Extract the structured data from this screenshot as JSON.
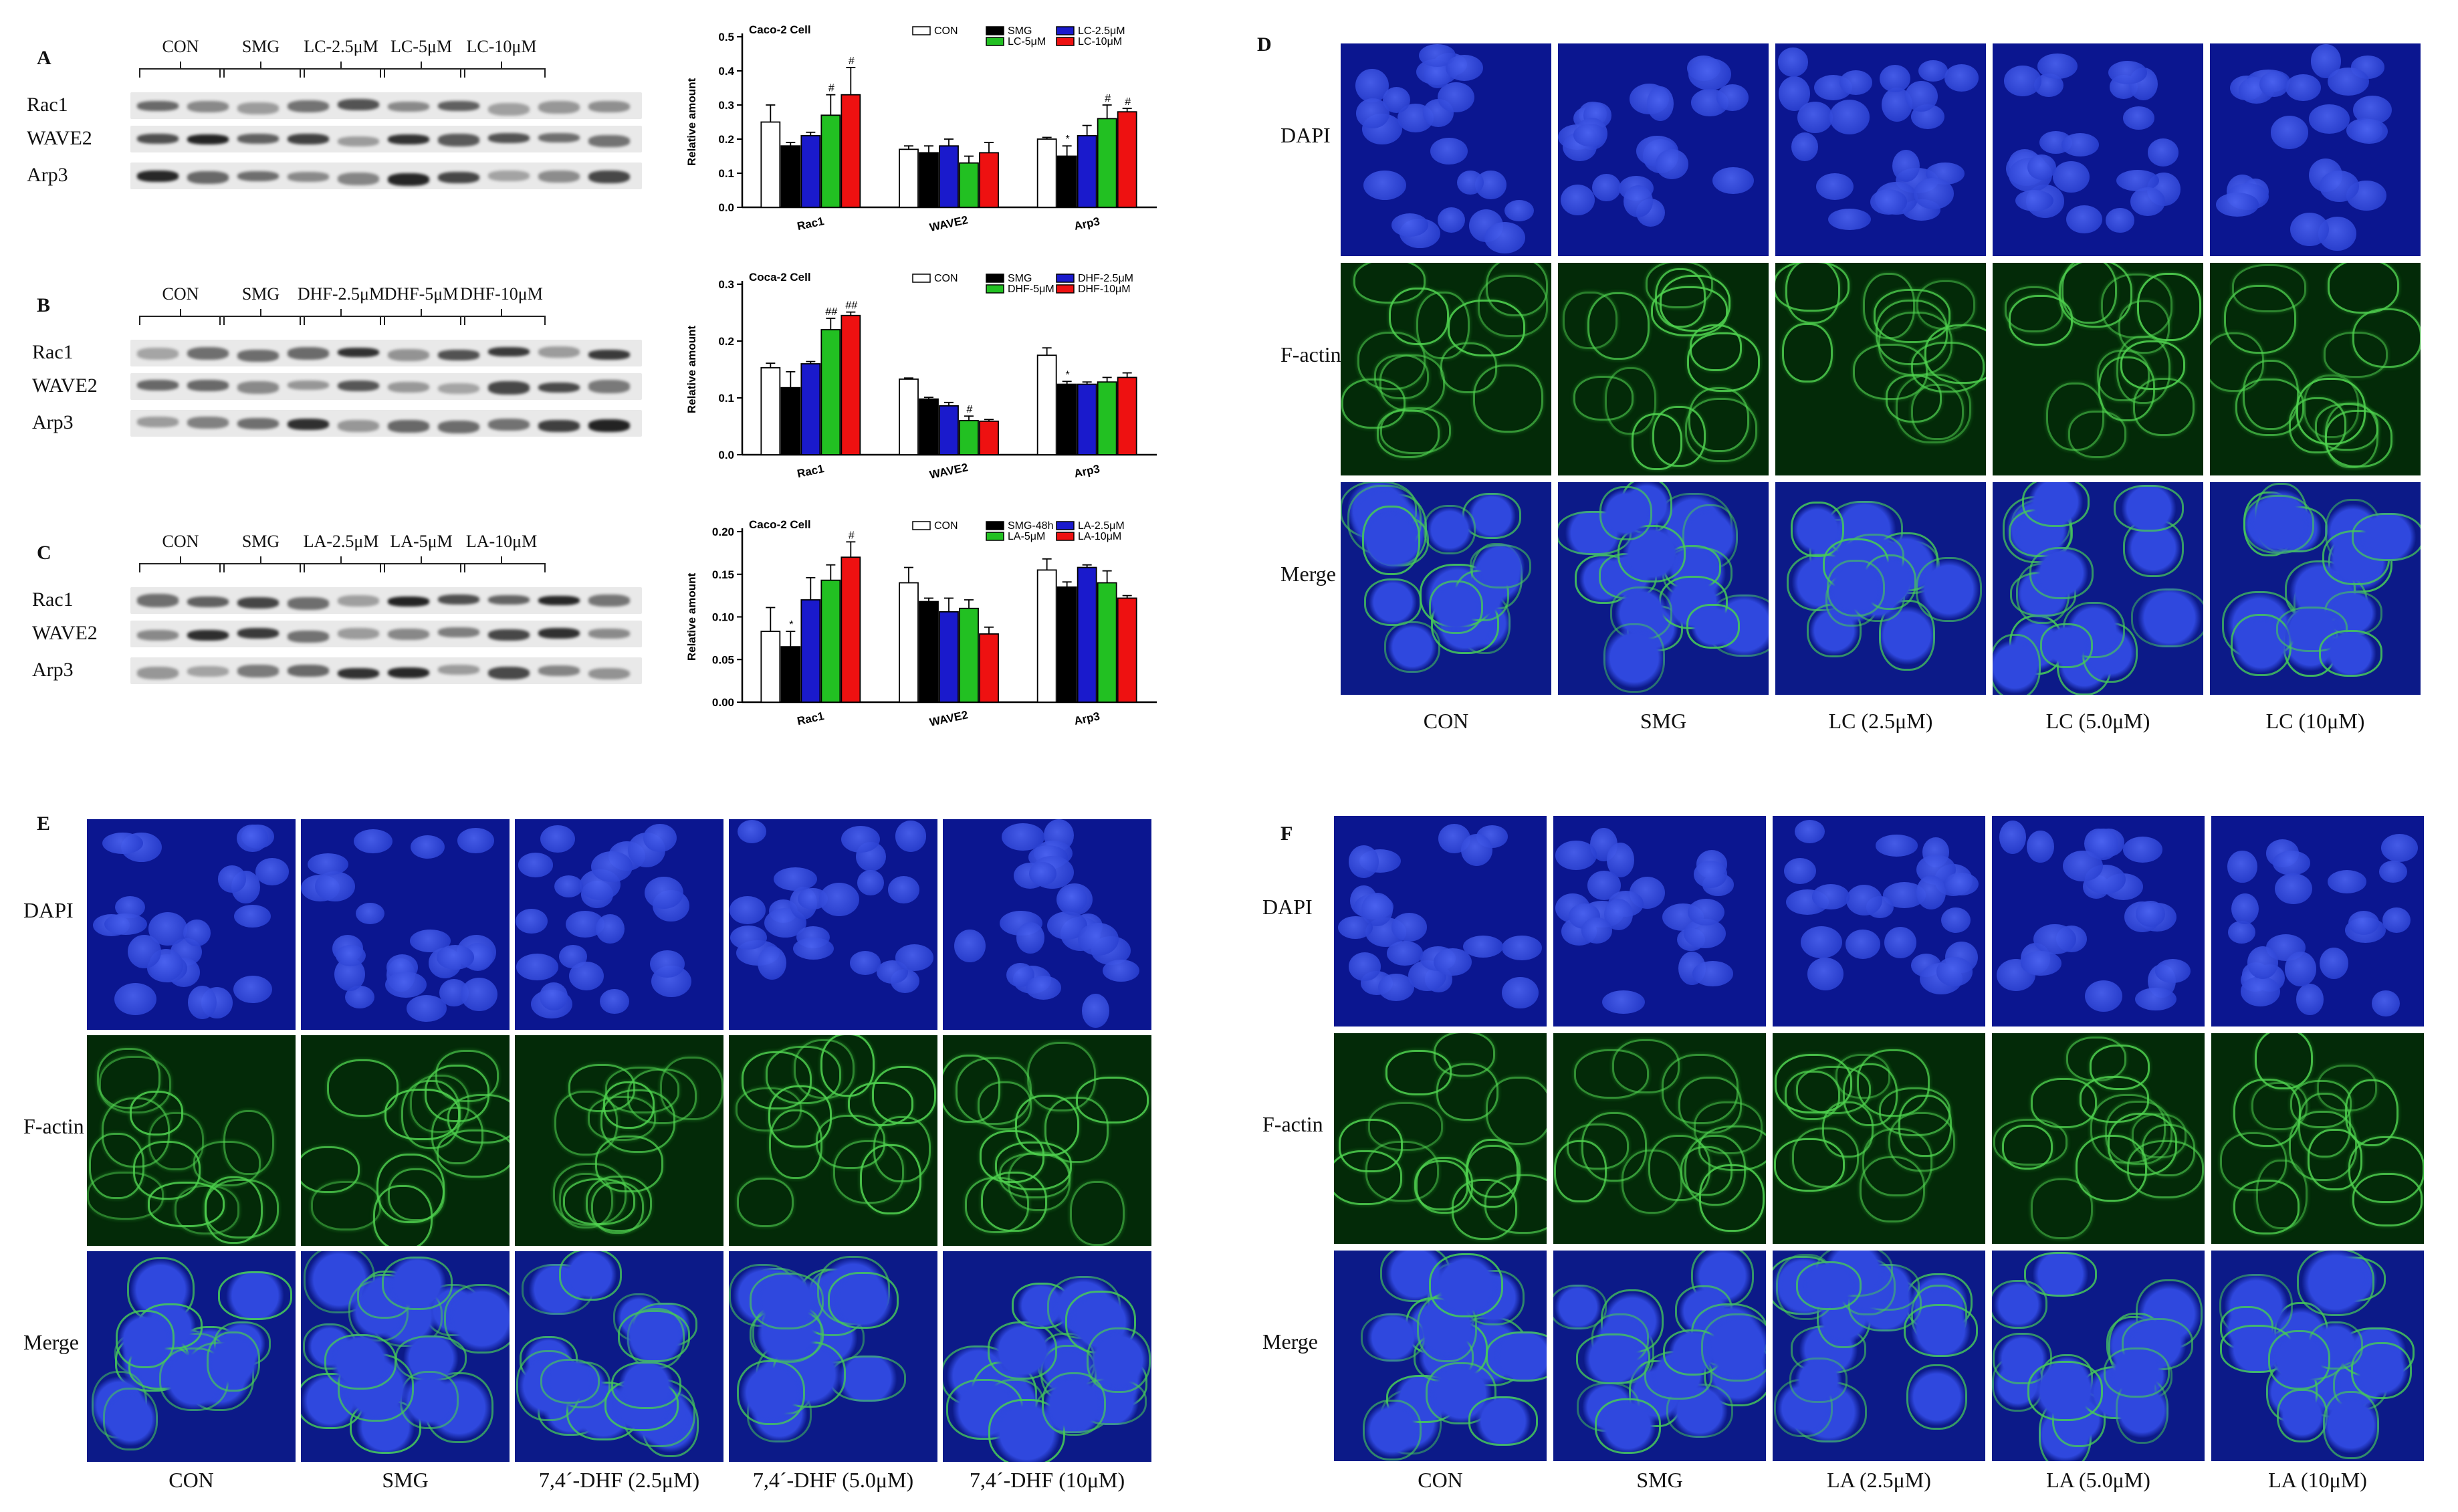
{
  "panels": {
    "A": {
      "letter": "A",
      "blot_groups": [
        "CON",
        "SMG",
        "LC-2.5μM",
        "LC-5μM",
        "LC-10μM"
      ],
      "blot_rows": [
        "Rac1",
        "WAVE2",
        "Arp3"
      ]
    },
    "B": {
      "letter": "B",
      "blot_groups": [
        "CON",
        "SMG",
        "DHF-2.5μM",
        "DHF-5μM",
        "DHF-10μM"
      ],
      "blot_rows": [
        "Rac1",
        "WAVE2",
        "Arp3"
      ]
    },
    "C": {
      "letter": "C",
      "blot_groups": [
        "CON",
        "SMG",
        "LA-2.5μM",
        "LA-5μM",
        "LA-10μM"
      ],
      "blot_rows": [
        "Rac1",
        "WAVE2",
        "Arp3"
      ]
    },
    "D": {
      "letter": "D",
      "rows": [
        "DAPI",
        "F-actin",
        "Merge"
      ],
      "columns": [
        "CON",
        "SMG",
        "LC (2.5μM)",
        "LC (5.0μM)",
        "LC (10μM)"
      ]
    },
    "E": {
      "letter": "E",
      "rows": [
        "DAPI",
        "F-actin",
        "Merge"
      ],
      "columns": [
        "CON",
        "SMG",
        "7,4´-DHF (2.5μM)",
        "7,4´-DHF (5.0μM)",
        "7,4´-DHF (10μM)"
      ]
    },
    "F": {
      "letter": "F",
      "rows": [
        "DAPI",
        "F-actin",
        "Merge"
      ],
      "columns": [
        "CON",
        "SMG",
        "LA (2.5μM)",
        "LA (5.0μM)",
        "LA (10μM)"
      ]
    }
  },
  "colors": {
    "CON": "#ffffff",
    "SMG": "#000000",
    "dose_low": "#1a1acc",
    "dose_mid": "#22c022",
    "dose_high": "#ee1111",
    "dapi": "#1a2fd0",
    "factin": "#3fbf3f"
  },
  "chart_data": [
    {
      "type": "bar",
      "title": "Caco-2 Cell",
      "ylabel": "Relative amount",
      "ylim": [
        0,
        0.5
      ],
      "yticks": [
        "0.0",
        "0.1",
        "0.2",
        "0.3",
        "0.4",
        "0.5"
      ],
      "categories": [
        "Rac1",
        "WAVE2",
        "Arp3"
      ],
      "series": [
        {
          "name": "CON",
          "values": [
            0.25,
            0.17,
            0.2
          ],
          "errors": [
            0.05,
            0.01,
            0.005
          ]
        },
        {
          "name": "SMG",
          "values": [
            0.18,
            0.16,
            0.15
          ],
          "errors": [
            0.01,
            0.02,
            0.03
          ]
        },
        {
          "name": "LC-2.5μM",
          "values": [
            0.21,
            0.18,
            0.21
          ],
          "errors": [
            0.01,
            0.02,
            0.03
          ]
        },
        {
          "name": "LC-5μM",
          "values": [
            0.27,
            0.13,
            0.26
          ],
          "errors": [
            0.06,
            0.02,
            0.04
          ]
        },
        {
          "name": "LC-10μM",
          "values": [
            0.33,
            0.16,
            0.28
          ],
          "errors": [
            0.08,
            0.03,
            0.01
          ]
        }
      ],
      "annotations": [
        "#",
        "#",
        "*",
        "#",
        "#"
      ],
      "legend": "top"
    },
    {
      "type": "bar",
      "title": "Coca-2 Cell",
      "ylabel": "Relative amount",
      "ylim": [
        0,
        0.3
      ],
      "yticks": [
        "0.0",
        "0.1",
        "0.2",
        "0.3"
      ],
      "categories": [
        "Rac1",
        "WAVE2",
        "Arp3"
      ],
      "series": [
        {
          "name": "CON",
          "values": [
            0.153,
            0.133,
            0.175
          ],
          "errors": [
            0.008,
            0.002,
            0.013
          ]
        },
        {
          "name": "SMG",
          "values": [
            0.118,
            0.098,
            0.124
          ],
          "errors": [
            0.028,
            0.003,
            0.005
          ]
        },
        {
          "name": "DHF-2.5μM",
          "values": [
            0.16,
            0.086,
            0.124
          ],
          "errors": [
            0.004,
            0.006,
            0.004
          ]
        },
        {
          "name": "DHF-5μM",
          "values": [
            0.22,
            0.06,
            0.128
          ],
          "errors": [
            0.02,
            0.008,
            0.008
          ]
        },
        {
          "name": "DHF-10μM",
          "values": [
            0.245,
            0.059,
            0.136
          ],
          "errors": [
            0.006,
            0.003,
            0.008
          ]
        }
      ],
      "annotations": [
        "##",
        "##",
        "#",
        "*"
      ],
      "legend": "top"
    },
    {
      "type": "bar",
      "title": "Caco-2 Cell",
      "ylabel": "Relative amount",
      "ylim": [
        0,
        0.2
      ],
      "yticks": [
        "0.00",
        "0.05",
        "0.10",
        "0.15",
        "0.20"
      ],
      "categories": [
        "Rac1",
        "WAVE2",
        "Arp3"
      ],
      "series": [
        {
          "name": "CON",
          "values": [
            0.083,
            0.14,
            0.155
          ],
          "errors": [
            0.028,
            0.018,
            0.013
          ]
        },
        {
          "name": "SMG-48h",
          "values": [
            0.065,
            0.118,
            0.135
          ],
          "errors": [
            0.018,
            0.004,
            0.006
          ]
        },
        {
          "name": "LA-2.5μM",
          "values": [
            0.12,
            0.106,
            0.158
          ],
          "errors": [
            0.026,
            0.016,
            0.003
          ]
        },
        {
          "name": "LA-5μM",
          "values": [
            0.143,
            0.11,
            0.14
          ],
          "errors": [
            0.018,
            0.01,
            0.014
          ]
        },
        {
          "name": "LA-10μM",
          "values": [
            0.17,
            0.08,
            0.122
          ],
          "errors": [
            0.018,
            0.008,
            0.003
          ]
        }
      ],
      "annotations": [
        "#",
        "*"
      ],
      "legend": "top"
    }
  ]
}
